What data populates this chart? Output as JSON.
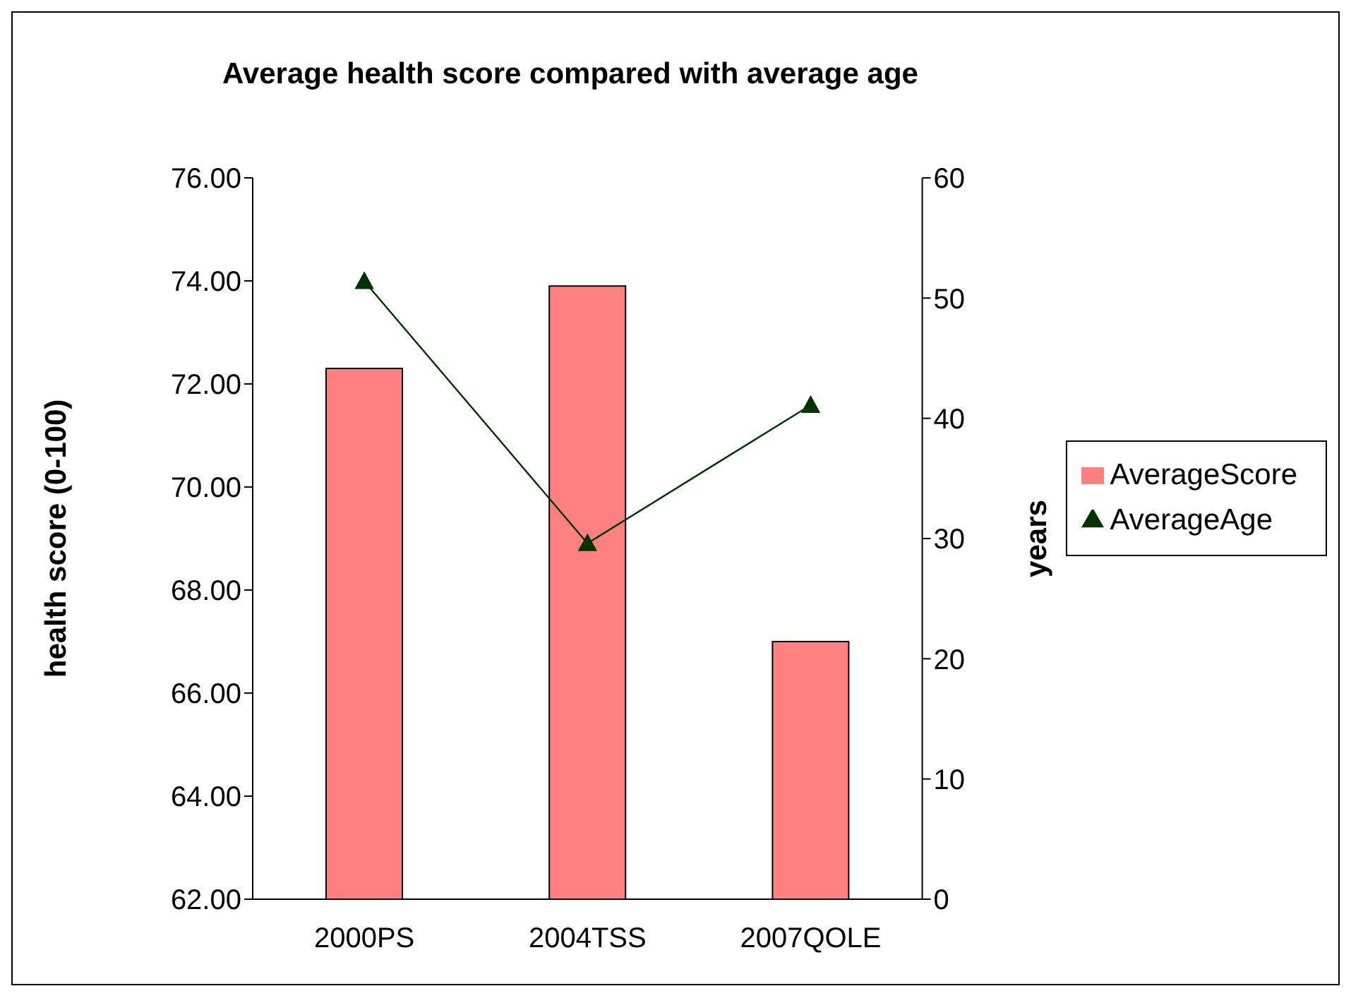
{
  "chart_data": {
    "type": "bar",
    "title": "Average health score compared with average age",
    "categories": [
      "2000PS",
      "2004TSS",
      "2007QOLE"
    ],
    "series": [
      {
        "name": "AverageScore",
        "color": "#ff8080",
        "values": [
          72.3,
          73.9,
          67.0
        ]
      },
      {
        "name": "AverageAge",
        "type": "line",
        "color": "#003300",
        "axis": "y2",
        "marker": "triangle",
        "values": [
          51.4,
          29.6,
          41.1
        ]
      }
    ],
    "ylabel": "health score (0-100)",
    "y2label": "years",
    "ylim": [
      62,
      76
    ],
    "yticks": [
      {
        "value": 62,
        "label": "62.00"
      },
      {
        "value": 64,
        "label": "64.00"
      },
      {
        "value": 66,
        "label": "66.00"
      },
      {
        "value": 68,
        "label": "68.00"
      },
      {
        "value": 70,
        "label": "70.00"
      },
      {
        "value": 72,
        "label": "72.00"
      },
      {
        "value": 74,
        "label": "74.00"
      },
      {
        "value": 76,
        "label": "76.00"
      }
    ],
    "y2lim": [
      0,
      60
    ],
    "y2ticks": [
      0,
      10,
      20,
      30,
      40,
      50,
      60
    ],
    "grid": false,
    "legend": "right"
  }
}
